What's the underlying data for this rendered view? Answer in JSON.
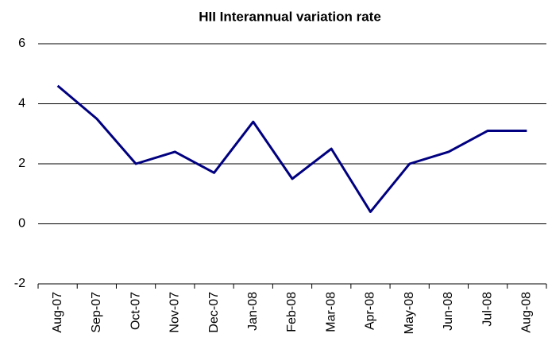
{
  "chart_data": {
    "type": "line",
    "title": "HII Interannual variation rate",
    "categories": [
      "Aug-07",
      "Sep-07",
      "Oct-07",
      "Nov-07",
      "Dec-07",
      "Jan-08",
      "Feb-08",
      "Mar-08",
      "Apr-08",
      "May-08",
      "Jun-08",
      "Jul-08",
      "Aug-08"
    ],
    "series": [
      {
        "name": "HII",
        "color": "#000080",
        "values": [
          4.6,
          3.5,
          2.0,
          2.4,
          1.7,
          3.4,
          1.5,
          2.5,
          0.4,
          2.0,
          2.4,
          3.1,
          3.1
        ]
      }
    ],
    "ylim": [
      -2,
      6
    ],
    "yticks": [
      -2,
      0,
      2,
      4,
      6
    ],
    "grid": true
  }
}
